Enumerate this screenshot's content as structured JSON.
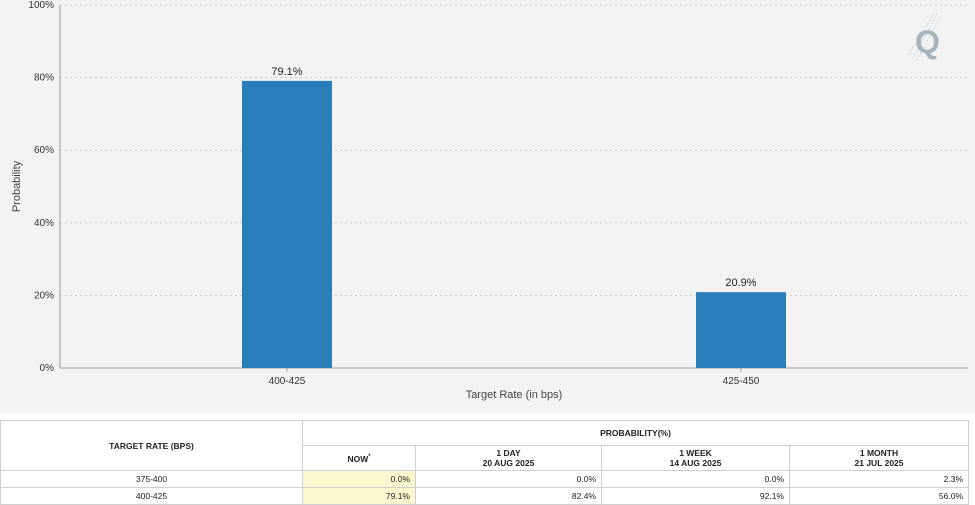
{
  "chart_data": {
    "type": "bar",
    "categories": [
      "400-425",
      "425-450"
    ],
    "values": [
      79.1,
      20.9
    ],
    "data_labels": [
      "79.1%",
      "20.9%"
    ],
    "xlabel": "Target Rate (in bps)",
    "ylabel": "Probability",
    "ylim": [
      0,
      100
    ],
    "yticks": [
      "0%",
      "20%",
      "40%",
      "60%",
      "80%",
      "100%"
    ],
    "grid": true,
    "bar_color": "#2a7fba"
  },
  "logo": {
    "letter": "Q"
  },
  "table": {
    "rate_header": "TARGET RATE (BPS)",
    "prob_header": "PROBABILITY(%)",
    "columns": [
      {
        "line1": "NOW",
        "line2": "",
        "marker": "*"
      },
      {
        "line1": "1 DAY",
        "line2": "20 AUG 2025",
        "marker": ""
      },
      {
        "line1": "1 WEEK",
        "line2": "14 AUG 2025",
        "marker": ""
      },
      {
        "line1": "1 MONTH",
        "line2": "21 JUL 2025",
        "marker": ""
      }
    ],
    "rows": [
      {
        "rate": "375-400",
        "values": [
          "0.0%",
          "0.0%",
          "0.0%",
          "2.3%"
        ]
      },
      {
        "rate": "400-425",
        "values": [
          "79.1%",
          "82.4%",
          "92.1%",
          "56.0%"
        ]
      }
    ]
  }
}
